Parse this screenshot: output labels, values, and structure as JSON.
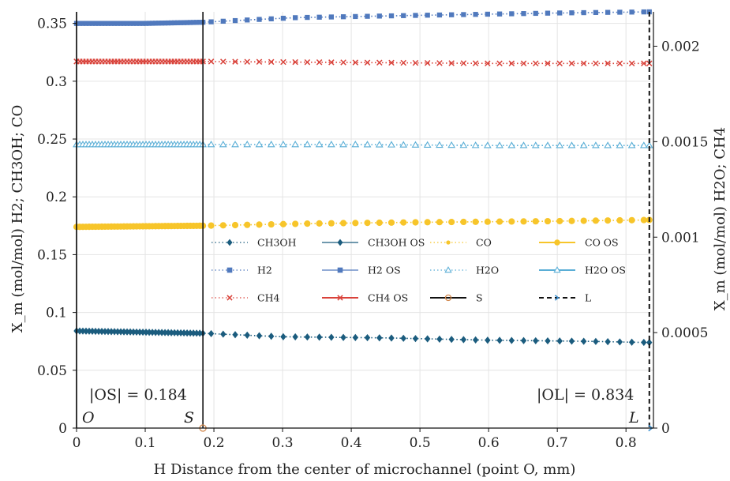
{
  "chart_data": {
    "type": "line",
    "xlabel": "H Distance from the center of microchannel (point O, mm)",
    "ylabel_left": "X_m (mol/mol) H2; CH3OH; CO",
    "ylabel_right": "X_m (mol/mol) H2O; CH4",
    "xlim": [
      0,
      0.84
    ],
    "ylim_left": [
      0,
      0.36
    ],
    "ylim_right": [
      0,
      0.00218
    ],
    "grid": true,
    "legend_location": "center-right",
    "x_ticks": [
      "0",
      "0.1",
      "0.2",
      "0.3",
      "0.4",
      "0.5",
      "0.6",
      "0.7",
      "0.8"
    ],
    "x_tick_values": [
      0,
      0.1,
      0.2,
      0.3,
      0.4,
      0.5,
      0.6,
      0.7,
      0.8
    ],
    "y_left_ticks": [
      "0",
      "0.05",
      "0.1",
      "0.15",
      "0.2",
      "0.25",
      "0.3",
      "0.35"
    ],
    "y_left_tick_values": [
      0,
      0.05,
      0.1,
      0.15,
      0.2,
      0.25,
      0.3,
      0.35
    ],
    "y_right_ticks": [
      "0",
      "0.0005",
      "0.001",
      "0.0015",
      "0.002"
    ],
    "y_right_tick_values": [
      0,
      0.0005,
      0.001,
      0.0015,
      0.002
    ],
    "annotations": {
      "os_length": "|OS| = 0.184",
      "ol_length": "|OL| = 0.834",
      "point_o": "O",
      "point_s": "S",
      "point_l": "L"
    },
    "vertical_markers": [
      {
        "name": "O",
        "x": 0,
        "style": "solid"
      },
      {
        "name": "S",
        "x": 0.184,
        "style": "solid"
      },
      {
        "name": "L",
        "x": 0.834,
        "style": "dashed"
      }
    ],
    "series": [
      {
        "name": "CH3OH",
        "axis": "left",
        "color": "#1b5c7e",
        "marker": "diamond",
        "dense_until": 0.184,
        "x": [
          0,
          0.184,
          0.3,
          0.45,
          0.6,
          0.75,
          0.834
        ],
        "y": [
          0.084,
          0.082,
          0.079,
          0.078,
          0.076,
          0.075,
          0.074
        ]
      },
      {
        "name": "H2",
        "axis": "left",
        "color": "#5079bd",
        "marker": "square",
        "dense_until": 0.184,
        "x": [
          0,
          0.1,
          0.184,
          0.25,
          0.32,
          0.5,
          0.7,
          0.834
        ],
        "y": [
          0.35,
          0.35,
          0.351,
          0.353,
          0.355,
          0.357,
          0.359,
          0.36
        ]
      },
      {
        "name": "CH4",
        "axis": "right",
        "color": "#d9423a",
        "marker": "x",
        "dense_until": 0.184,
        "x": [
          0,
          0.184,
          0.4,
          0.6,
          0.834
        ],
        "y": [
          0.00192,
          0.00192,
          0.001915,
          0.00191,
          0.00191
        ]
      },
      {
        "name": "H2O",
        "axis": "right",
        "color": "#5aaed6",
        "marker": "triangle-open",
        "dense_until": 0.184,
        "x": [
          0,
          0.184,
          0.4,
          0.6,
          0.834
        ],
        "y": [
          0.001485,
          0.001485,
          0.001485,
          0.00148,
          0.00148
        ]
      },
      {
        "name": "CO",
        "axis": "left",
        "color": "#f7c52a",
        "marker": "circle",
        "dense_until": 0.184,
        "x": [
          0,
          0.184,
          0.35,
          0.5,
          0.7,
          0.834
        ],
        "y": [
          0.174,
          0.175,
          0.177,
          0.178,
          0.179,
          0.18
        ]
      }
    ],
    "legend": [
      {
        "label": "CH3OH",
        "color": "#1b5c7e",
        "marker": "diamond",
        "line": "dotted"
      },
      {
        "label": "CH3OH OS",
        "color": "#1b5c7e",
        "marker": "diamond",
        "line": "solid"
      },
      {
        "label": "CO",
        "color": "#f7c52a",
        "marker": "circle-small",
        "line": "dotted"
      },
      {
        "label": "CO OS",
        "color": "#f7c52a",
        "marker": "circle",
        "line": "solid"
      },
      {
        "label": "H2",
        "color": "#5079bd",
        "marker": "square",
        "line": "dotted"
      },
      {
        "label": "H2 OS",
        "color": "#5079bd",
        "marker": "square",
        "line": "solid"
      },
      {
        "label": "H2O",
        "color": "#5aaed6",
        "marker": "triangle-open",
        "line": "dotted"
      },
      {
        "label": "H2O OS",
        "color": "#5aaed6",
        "marker": "triangle-open",
        "line": "solid"
      },
      {
        "label": "CH4",
        "color": "#d9423a",
        "marker": "x",
        "line": "dotted"
      },
      {
        "label": "CH4 OS",
        "color": "#d9423a",
        "marker": "x",
        "line": "solid"
      },
      {
        "label": "S",
        "color": "#111111",
        "marker": "circle-open-orange",
        "line": "solid"
      },
      {
        "label": "L",
        "color": "#111111",
        "marker": "arrow-blue",
        "line": "dashed"
      }
    ]
  }
}
